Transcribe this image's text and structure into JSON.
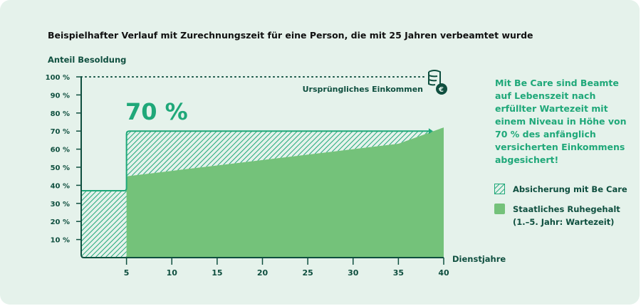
{
  "chart_data": {
    "type": "area",
    "title": "Beispielhafter Verlauf mit Zurechnungszeit für eine Person, die mit 25 Jahren verbeamtet wurde",
    "ylabel": "Anteil Besoldung",
    "xlabel": "Dienstjahre",
    "xlim": [
      0,
      40
    ],
    "ylim": [
      0,
      100
    ],
    "x_ticks": [
      "5",
      "10",
      "15",
      "20",
      "25",
      "30",
      "35",
      "40"
    ],
    "y_ticks": [
      "10 %",
      "20 %",
      "30 %",
      "40 %",
      "50 %",
      "60 %",
      "70 %",
      "80 %",
      "90 %",
      "100 %"
    ],
    "reference_line": {
      "value": 100,
      "label": "Ursprüngliches Einkommen",
      "icon": "coins-euro-icon"
    },
    "highlight_label": "70 %",
    "series": [
      {
        "name": "Staatliches Ruhegehalt",
        "style": "solid",
        "color": "#74c27a",
        "x": [
          5,
          10,
          15,
          20,
          25,
          30,
          35,
          40
        ],
        "y": [
          45,
          48,
          51,
          54,
          57,
          60,
          63,
          72
        ]
      },
      {
        "name": "Absicherung mit Be Care",
        "style": "hatched",
        "color": "#1fa879",
        "x": [
          0,
          5,
          5,
          38.5
        ],
        "y": [
          37,
          37,
          70,
          70
        ]
      }
    ],
    "legend": [
      {
        "label": "Absicherung mit Be Care",
        "style": "hatched"
      },
      {
        "label": "Staatliches Ruhegehalt",
        "sub": "(1.–5. Jahr: Wartezeit)",
        "style": "solid"
      }
    ],
    "legend_placement": "right",
    "grid": false
  },
  "note": "Mit Be Care sind Beamte auf Lebenszeit nach erfüllter Wartezeit mit einem Niveau in Höhe von 70 % des anfänglich versicherten Einkommens abgesichert!",
  "colors": {
    "background": "#e5f2eb",
    "accent": "#1fa879",
    "dark": "#0f4f3f",
    "fill": "#74c27a"
  }
}
